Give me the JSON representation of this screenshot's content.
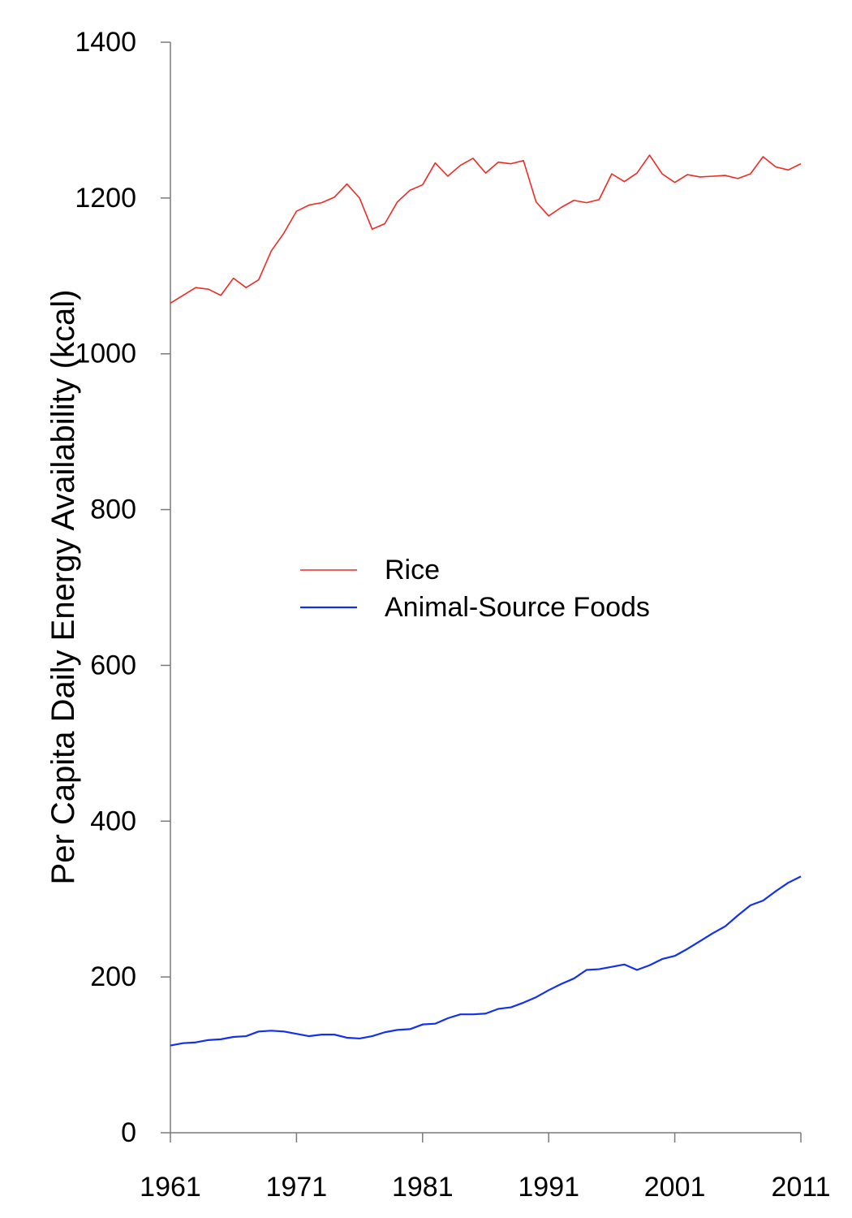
{
  "chart_data": {
    "type": "line",
    "title": "",
    "xlabel": "",
    "ylabel": "Per Capita Daily Energy Availability (kcal)",
    "xlim": [
      1961,
      2011
    ],
    "ylim": [
      0,
      1400
    ],
    "x_ticks": [
      "1961",
      "1971",
      "1981",
      "1991",
      "2001",
      "2011"
    ],
    "y_ticks": [
      "0",
      "200",
      "400",
      "600",
      "800",
      "1000",
      "1200",
      "1400"
    ],
    "grid": false,
    "legend_position": "center",
    "x": [
      1961,
      1962,
      1963,
      1964,
      1965,
      1966,
      1967,
      1968,
      1969,
      1970,
      1971,
      1972,
      1973,
      1974,
      1975,
      1976,
      1977,
      1978,
      1979,
      1980,
      1981,
      1982,
      1983,
      1984,
      1985,
      1986,
      1987,
      1988,
      1989,
      1990,
      1991,
      1992,
      1993,
      1994,
      1995,
      1996,
      1997,
      1998,
      1999,
      2000,
      2001,
      2002,
      2003,
      2004,
      2005,
      2006,
      2007,
      2008,
      2009,
      2010,
      2011
    ],
    "series": [
      {
        "name": "Rice",
        "color": "#ee2a24",
        "values": [
          1065,
          1075,
          1085,
          1083,
          1075,
          1097,
          1085,
          1095,
          1132,
          1155,
          1183,
          1191,
          1194,
          1201,
          1218,
          1200,
          1160,
          1167,
          1195,
          1210,
          1217,
          1245,
          1228,
          1242,
          1251,
          1232,
          1246,
          1244,
          1248,
          1195,
          1177,
          1188,
          1197,
          1194,
          1198,
          1231,
          1221,
          1232,
          1255,
          1231,
          1220,
          1230,
          1227,
          1228,
          1229,
          1225,
          1231,
          1253,
          1240,
          1236,
          1244
        ]
      },
      {
        "name": "Animal-Source Foods",
        "color": "#1330ee",
        "values": [
          112,
          115,
          116,
          119,
          120,
          123,
          124,
          130,
          131,
          130,
          127,
          124,
          126,
          126,
          122,
          121,
          124,
          129,
          132,
          133,
          139,
          140,
          147,
          152,
          152,
          153,
          159,
          161,
          167,
          174,
          183,
          191,
          198,
          209,
          210,
          213,
          216,
          209,
          215,
          223,
          227,
          236,
          246,
          256,
          265,
          279,
          292,
          298,
          310,
          321,
          329
        ]
      }
    ]
  }
}
